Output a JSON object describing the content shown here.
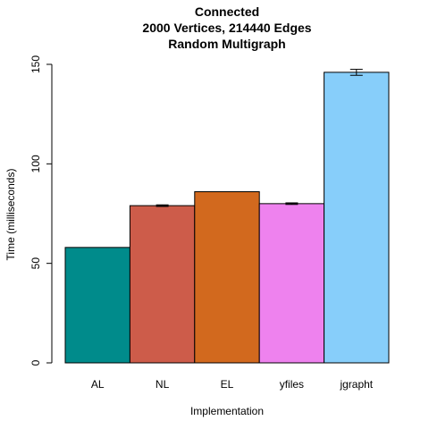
{
  "chart_data": {
    "type": "bar",
    "title": [
      "Connected",
      "2000 Vertices, 214440 Edges",
      "Random Multigraph"
    ],
    "xlabel": "Implementation",
    "ylabel": "Time (milliseconds)",
    "categories": [
      "AL",
      "NL",
      "EL",
      "yfiles",
      "jgrapht"
    ],
    "values": [
      58,
      79,
      86,
      80,
      146
    ],
    "error": [
      0,
      0.4,
      0,
      0.4,
      1.5
    ],
    "colors": [
      "#008b8b",
      "#cd5c4a",
      "#d2691e",
      "#ee82ee",
      "#87cefa"
    ],
    "ylim": [
      0,
      150
    ],
    "yticks": [
      0,
      50,
      100,
      150
    ],
    "grid": false,
    "legend": "none"
  }
}
